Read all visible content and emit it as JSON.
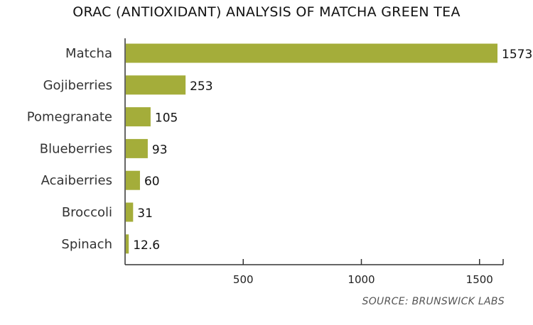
{
  "chart_data": {
    "type": "bar",
    "orientation": "horizontal",
    "title": "ORAC (ANTIOXIDANT) ANALYSIS OF MATCHA GREEN TEA",
    "source": "SOURCE: BRUNSWICK LABS",
    "categories": [
      "Matcha",
      "Gojiberries",
      "Pomegranate",
      "Blueberries",
      "Acaiberries",
      "Broccoli",
      "Spinach"
    ],
    "values": [
      1573,
      253,
      105,
      93,
      60,
      31,
      12.6
    ],
    "value_labels": [
      "1573",
      "253",
      "105",
      "93",
      "60",
      "31",
      "12.6"
    ],
    "xticks": [
      500,
      1000,
      1500
    ],
    "xtick_labels": [
      "500",
      "1000",
      "1500"
    ],
    "xlim": [
      0,
      1600
    ],
    "bar_color": "#a4ad3a",
    "grid": false,
    "xlabel": "",
    "ylabel": ""
  }
}
